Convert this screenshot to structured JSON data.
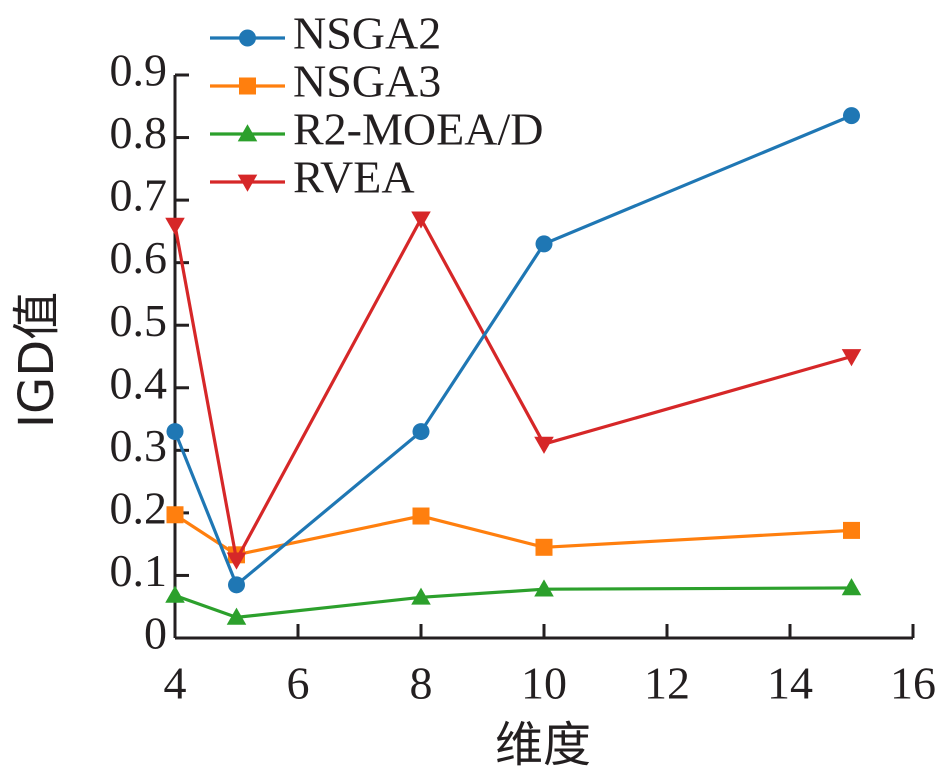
{
  "chart_data": {
    "type": "line",
    "xlabel": "维度",
    "ylabel": "IGD值",
    "xlim": [
      4,
      16
    ],
    "ylim": [
      0,
      0.9
    ],
    "xticks": [
      4,
      6,
      8,
      10,
      12,
      14,
      16
    ],
    "yticks": [
      0,
      0.1,
      0.2,
      0.3,
      0.4,
      0.5,
      0.6,
      0.7,
      0.8,
      0.9
    ],
    "xtick_labels": [
      "4",
      "6",
      "8",
      "10",
      "12",
      "14",
      "16"
    ],
    "ytick_labels": [
      "0",
      "0.1",
      "0.2",
      "0.3",
      "0.4",
      "0.5",
      "0.6",
      "0.7",
      "0.8",
      "0.9"
    ],
    "grid": false,
    "legend_position": "top-left",
    "x": [
      4,
      5,
      8,
      10,
      15
    ],
    "series": [
      {
        "name": "NSGA2",
        "color": "#1f77b4",
        "marker": "circle",
        "values": [
          0.33,
          0.085,
          0.33,
          0.63,
          0.835
        ]
      },
      {
        "name": "NSGA3",
        "color": "#ff7f0e",
        "marker": "square",
        "values": [
          0.197,
          0.133,
          0.195,
          0.145,
          0.172
        ]
      },
      {
        "name": "R2-MOEA/D",
        "color": "#2ca02c",
        "marker": "triangle-up",
        "values": [
          0.068,
          0.033,
          0.065,
          0.078,
          0.08
        ]
      },
      {
        "name": "RVEA",
        "color": "#d62728",
        "marker": "triangle-down",
        "values": [
          0.66,
          0.125,
          0.67,
          0.31,
          0.45
        ]
      }
    ]
  }
}
